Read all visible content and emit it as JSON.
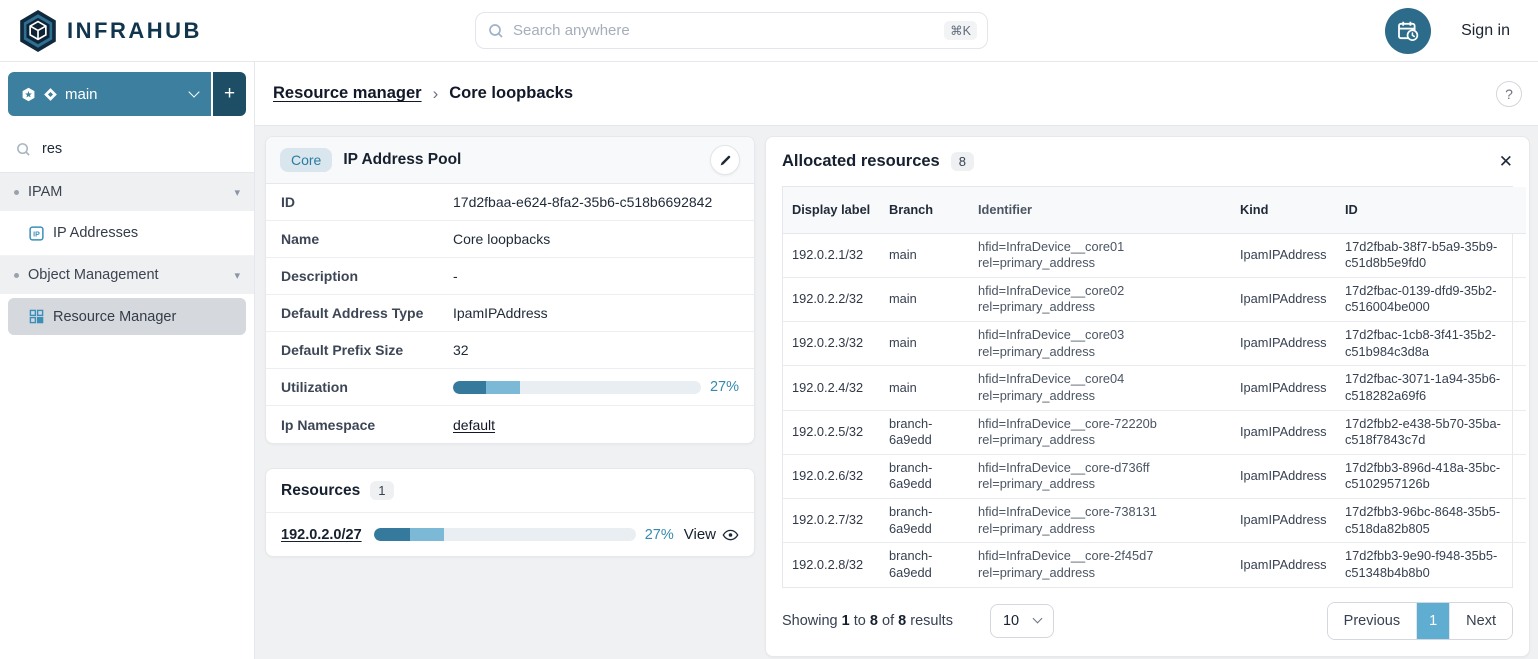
{
  "colors": {
    "brand-navy": "#12354e",
    "teal": "#3c7f9e",
    "teal-dark": "#1d4e66",
    "avatar-teal": "#2c6c8a",
    "link": "#3789ad",
    "progress-dark": "#357a9d",
    "progress-light": "#7cb9d6",
    "progress-track": "#e9eef3",
    "active-page": "#5fadd1",
    "core-badge-bg": "#d9e6ee",
    "core-badge-text": "#2c7ba1",
    "icon-blue": "#3b8fb9"
  },
  "icons": {
    "breadcrumb_separator": "›",
    "close": "✕",
    "section_caret": "▾"
  },
  "header": {
    "logo_text": "INFRAHUB",
    "search": {
      "placeholder": "Search anywhere",
      "shortcut": "⌘K"
    },
    "sign_in_label": "Sign in"
  },
  "sidebar": {
    "branch": {
      "name": "main",
      "add_label": "+"
    },
    "search_value": "res",
    "sections": [
      {
        "label": "IPAM",
        "items": [
          {
            "label": "IP Addresses"
          }
        ]
      },
      {
        "label": "Object Management",
        "items": [
          {
            "label": "Resource Manager"
          }
        ]
      }
    ]
  },
  "breadcrumb": {
    "parent": "Resource manager",
    "current": "Core loopbacks",
    "help_label": "?"
  },
  "pool_card": {
    "badge": "Core",
    "title": "IP Address Pool",
    "fields": {
      "id": {
        "label": "ID",
        "value": "17d2fbaa-e624-8fa2-35b6-c518b6692842"
      },
      "name": {
        "label": "Name",
        "value": "Core loopbacks"
      },
      "description": {
        "label": "Description",
        "value": "-"
      },
      "default_address_type": {
        "label": "Default Address Type",
        "value": "IpamIPAddress"
      },
      "default_prefix_size": {
        "label": "Default Prefix Size",
        "value": "32"
      }
    },
    "utilization": {
      "label": "Utilization",
      "percent": "27%",
      "dark_percent": 13.5,
      "light_percent": 13.5
    },
    "namespace": {
      "label": "Ip Namespace",
      "value": "default"
    }
  },
  "resources_card": {
    "title": "Resources",
    "count": "1",
    "resource": {
      "prefix": "192.0.2.0/27",
      "percent": "27%",
      "view_label": "View",
      "dark_percent": 14,
      "light_percent": 13
    }
  },
  "allocated": {
    "title": "Allocated resources",
    "count": "8",
    "columns": [
      "Display label",
      "Branch",
      "Identifier",
      "Kind",
      "ID"
    ],
    "rows": [
      {
        "display_label": "192.0.2.1/32",
        "branch": "main",
        "identifier_lines": [
          "hfid=InfraDevice__core01",
          "rel=primary_address"
        ],
        "kind": "IpamIPAddress",
        "id": "17d2fbab-38f7-b5a9-35b9-c51d8b5e9fd0"
      },
      {
        "display_label": "192.0.2.2/32",
        "branch": "main",
        "identifier_lines": [
          "hfid=InfraDevice__core02",
          "rel=primary_address"
        ],
        "kind": "IpamIPAddress",
        "id": "17d2fbac-0139-dfd9-35b2-c516004be000"
      },
      {
        "display_label": "192.0.2.3/32",
        "branch": "main",
        "identifier_lines": [
          "hfid=InfraDevice__core03",
          "rel=primary_address"
        ],
        "kind": "IpamIPAddress",
        "id": "17d2fbac-1cb8-3f41-35b2-c51b984c3d8a"
      },
      {
        "display_label": "192.0.2.4/32",
        "branch": "main",
        "identifier_lines": [
          "hfid=InfraDevice__core04",
          "rel=primary_address"
        ],
        "kind": "IpamIPAddress",
        "id": "17d2fbac-3071-1a94-35b6-c518282a69f6"
      },
      {
        "display_label": "192.0.2.5/32",
        "branch": "branch-6a9edd",
        "identifier_lines": [
          "hfid=InfraDevice__core-72220b",
          "rel=primary_address"
        ],
        "kind": "IpamIPAddress",
        "id": "17d2fbb2-e438-5b70-35ba-c518f7843c7d"
      },
      {
        "display_label": "192.0.2.6/32",
        "branch": "branch-6a9edd",
        "identifier_lines": [
          "hfid=InfraDevice__core-d736ff",
          "rel=primary_address"
        ],
        "kind": "IpamIPAddress",
        "id": "17d2fbb3-896d-418a-35bc-c5102957126b"
      },
      {
        "display_label": "192.0.2.7/32",
        "branch": "branch-6a9edd",
        "identifier_lines": [
          "hfid=InfraDevice__core-738131",
          "rel=primary_address"
        ],
        "kind": "IpamIPAddress",
        "id": "17d2fbb3-96bc-8648-35b5-c518da82b805"
      },
      {
        "display_label": "192.0.2.8/32",
        "branch": "branch-6a9edd",
        "identifier_lines": [
          "hfid=InfraDevice__core-2f45d7",
          "rel=primary_address"
        ],
        "kind": "IpamIPAddress",
        "id": "17d2fbb3-9e90-f948-35b5-c51348b4b8b0"
      }
    ]
  },
  "pagination": {
    "showing_prefix": "Showing",
    "from": "1",
    "to_word": "to",
    "to": "8",
    "of_word": "of",
    "total": "8",
    "suffix": "results",
    "page_size": "10",
    "previous_label": "Previous",
    "page": "1",
    "next_label": "Next"
  }
}
